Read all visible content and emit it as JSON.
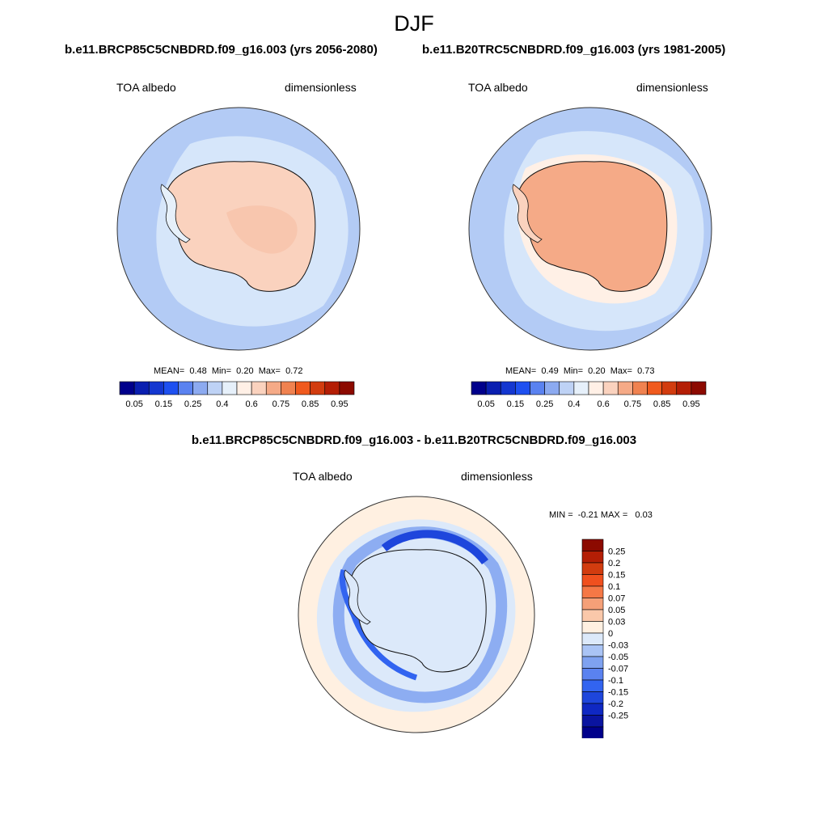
{
  "season": "DJF",
  "panels": [
    {
      "case": "b.e11.BRCP85C5CNBDRD.f09_g16.003 (yrs 2056-2080)",
      "variable": "TOA albedo",
      "units": "dimensionless",
      "stats": {
        "mean_label": "MEAN=",
        "mean": "0.48",
        "min_label": "Min=",
        "min": "0.20",
        "max_label": "Max=",
        "max": "0.72"
      }
    },
    {
      "case": "b.e11.B20TRC5CNBDRD.f09_g16.003 (yrs 1981-2005)",
      "variable": "TOA albedo",
      "units": "dimensionless",
      "stats": {
        "mean_label": "MEAN=",
        "mean": "0.49",
        "min_label": "Min=",
        "min": "0.20",
        "max_label": "Max=",
        "max": "0.73"
      }
    }
  ],
  "colorbar": {
    "colors": [
      "#00008b",
      "#0a1fb0",
      "#1437d0",
      "#1e50f0",
      "#5a82f0",
      "#8caaf0",
      "#bed2f5",
      "#e6f0fa",
      "#fff0e6",
      "#fad2be",
      "#f5aa87",
      "#f08250",
      "#f05a1e",
      "#d23c0f",
      "#b41e05",
      "#8c0a00"
    ],
    "tick_labels": [
      "0.05",
      "0.15",
      "0.25",
      "0.4",
      "0.6",
      "0.75",
      "0.85",
      "0.95"
    ]
  },
  "diff": {
    "title": "b.e11.BRCP85C5CNBDRD.f09_g16.003 - b.e11.B20TRC5CNBDRD.f09_g16.003",
    "variable": "TOA albedo",
    "units": "dimensionless",
    "stats": {
      "min_label": "MIN =",
      "min": "-0.21",
      "max_label": "MAX =",
      "max": "0.03"
    },
    "colorbar": {
      "colors": [
        "#8c0a00",
        "#b41e05",
        "#d23c0f",
        "#f0501e",
        "#f57846",
        "#f5a078",
        "#fac8aa",
        "#fff0e1",
        "#dce9fa",
        "#aac4f5",
        "#7fa2f0",
        "#5a82f0",
        "#3264f0",
        "#1e46dc",
        "#0f28c3",
        "#0a14a0",
        "#00008b"
      ],
      "labels": [
        "0.25",
        "0.2",
        "0.15",
        "0.1",
        "0.07",
        "0.05",
        "0.03",
        "0",
        "-0.03",
        "-0.05",
        "-0.07",
        "-0.1",
        "-0.15",
        "-0.2",
        "-0.25"
      ]
    }
  }
}
